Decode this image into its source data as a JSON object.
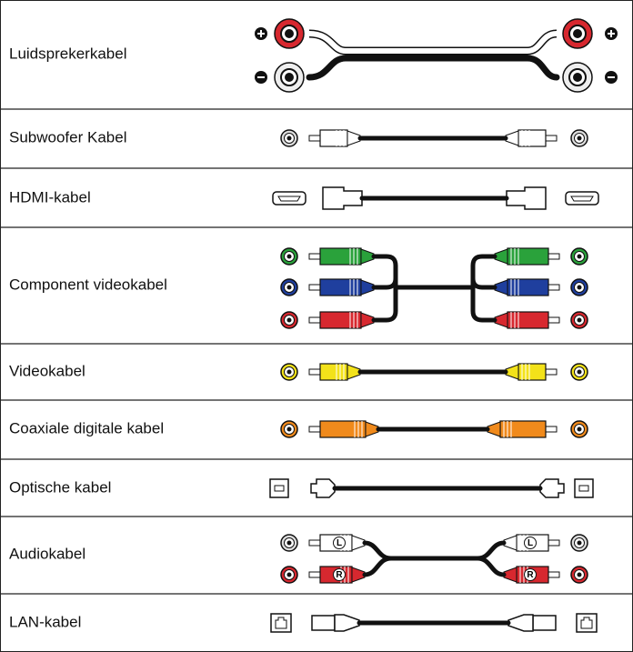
{
  "rows": [
    {
      "label": "Luidsprekerkabel"
    },
    {
      "label": "Subwoofer Kabel"
    },
    {
      "label": "HDMI-kabel"
    },
    {
      "label": "Component videokabel"
    },
    {
      "label": "Videokabel"
    },
    {
      "label": "Coaxiale digitale kabel"
    },
    {
      "label": "Optische kabel"
    },
    {
      "label": "Audiokabel",
      "plug_labels": [
        "L",
        "R"
      ]
    },
    {
      "label": "LAN-kabel"
    }
  ]
}
